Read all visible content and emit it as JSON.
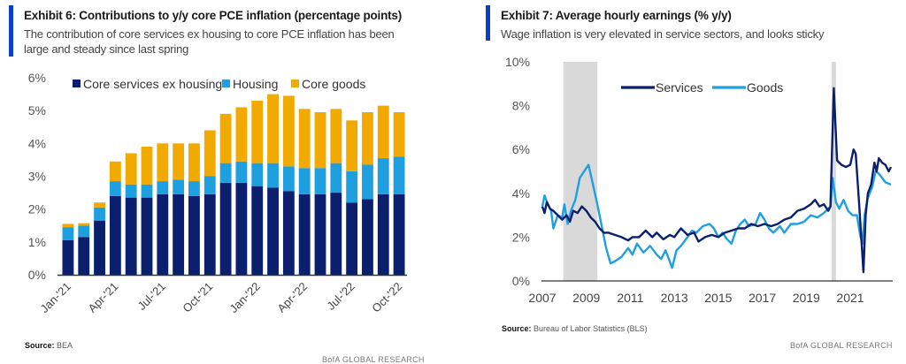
{
  "exhibit6": {
    "title": "Exhibit 6: Contributions to y/y core PCE inflation (percentage points)",
    "subtitle_line1": "The contribution of core services ex housing to core PCE inflation has been",
    "subtitle_line2": "large and steady since last spring",
    "source_label": "Source:",
    "source_value": "BEA",
    "brand": "BofA GLOBAL RESEARCH"
  },
  "exhibit7": {
    "title": "Exhibit 7: Average hourly earnings (% y/y)",
    "subtitle": "Wage inflation is very elevated in service sectors, and looks sticky",
    "source_label": "Source:",
    "source_value": "Bureau of Labor Statistics (BLS)",
    "brand": "BofA GLOBAL RESEARCH"
  },
  "colors": {
    "accent": "#0b3ec9",
    "navy": "#0a1f6e",
    "housing": "#1ea0e0",
    "goods": "#f2a900",
    "recession": "#d9d9d9",
    "axis": "#333333"
  },
  "chart_data": [
    {
      "type": "bar",
      "stacked": true,
      "title": "Exhibit 6: Contributions to y/y core PCE inflation (percentage points)",
      "xlabel": "",
      "ylabel": "",
      "ylim": [
        0,
        6
      ],
      "yticks": [
        "0%",
        "1%",
        "2%",
        "3%",
        "4%",
        "5%",
        "6%"
      ],
      "legend_position": "top",
      "categories": [
        "Jan-'21",
        "Feb-'21",
        "Mar-'21",
        "Apr-'21",
        "May-'21",
        "Jun-'21",
        "Jul-'21",
        "Aug-'21",
        "Sep-'21",
        "Oct-'21",
        "Nov-'21",
        "Dec-'21",
        "Jan-'22",
        "Feb-'22",
        "Mar-'22",
        "Apr-'22",
        "May-'22",
        "Jun-'22",
        "Jul-'22",
        "Aug-'22",
        "Sep-'22",
        "Oct-'22"
      ],
      "tick_labels": [
        {
          "index": 0,
          "label": "Jan-'21"
        },
        {
          "index": 3,
          "label": "Apr-'21"
        },
        {
          "index": 6,
          "label": "Jul-'21"
        },
        {
          "index": 9,
          "label": "Oct-'21"
        },
        {
          "index": 12,
          "label": "Jan-'22"
        },
        {
          "index": 15,
          "label": "Apr-'22"
        },
        {
          "index": 18,
          "label": "Jul-'22"
        },
        {
          "index": 21,
          "label": "Oct-'22"
        }
      ],
      "series": [
        {
          "name": "Core services ex housing",
          "color": "#0a1f6e",
          "values": [
            1.05,
            1.15,
            1.65,
            2.4,
            2.35,
            2.35,
            2.45,
            2.45,
            2.4,
            2.45,
            2.8,
            2.8,
            2.7,
            2.65,
            2.55,
            2.45,
            2.45,
            2.5,
            2.2,
            2.3,
            2.45,
            2.45
          ]
        },
        {
          "name": "Housing",
          "color": "#1ea0e0",
          "values": [
            0.4,
            0.35,
            0.4,
            0.45,
            0.4,
            0.4,
            0.4,
            0.45,
            0.45,
            0.55,
            0.6,
            0.65,
            0.7,
            0.75,
            0.75,
            0.8,
            0.8,
            0.9,
            0.95,
            1.05,
            1.1,
            1.15
          ]
        },
        {
          "name": "Core goods",
          "color": "#f2a900",
          "values": [
            0.1,
            0.07,
            0.15,
            0.6,
            0.95,
            1.15,
            1.15,
            1.1,
            1.15,
            1.4,
            1.5,
            1.65,
            1.9,
            2.1,
            2.15,
            1.8,
            1.7,
            1.65,
            1.55,
            1.6,
            1.6,
            1.35
          ]
        }
      ]
    },
    {
      "type": "line",
      "title": "Exhibit 7: Average hourly earnings (% y/y)",
      "xlabel": "",
      "ylabel": "",
      "xlim": [
        2007,
        2022.9
      ],
      "ylim": [
        0,
        10
      ],
      "xticks": [
        "2007",
        "2009",
        "2011",
        "2013",
        "2015",
        "2017",
        "2019",
        "2021"
      ],
      "yticks": [
        "0%",
        "2%",
        "4%",
        "6%",
        "8%",
        "10%"
      ],
      "legend_position": "top",
      "recessions": [
        [
          2007.95,
          2009.5
        ],
        [
          2020.15,
          2020.35
        ]
      ],
      "series": [
        {
          "name": "Services",
          "color": "#0a1f6e",
          "points": [
            [
              2007.0,
              3.4
            ],
            [
              2007.1,
              3.1
            ],
            [
              2007.2,
              3.6
            ],
            [
              2007.35,
              3.3
            ],
            [
              2007.5,
              3.2
            ],
            [
              2007.7,
              3.0
            ],
            [
              2007.9,
              2.8
            ],
            [
              2008.1,
              3.0
            ],
            [
              2008.25,
              2.7
            ],
            [
              2008.4,
              3.2
            ],
            [
              2008.6,
              3.1
            ],
            [
              2008.8,
              3.4
            ],
            [
              2009.0,
              3.2
            ],
            [
              2009.2,
              2.9
            ],
            [
              2009.4,
              2.7
            ],
            [
              2009.6,
              2.4
            ],
            [
              2009.8,
              2.2
            ],
            [
              2010.0,
              2.2
            ],
            [
              2010.3,
              2.1
            ],
            [
              2010.6,
              2.0
            ],
            [
              2010.9,
              1.85
            ],
            [
              2011.1,
              2.0
            ],
            [
              2011.4,
              2.0
            ],
            [
              2011.7,
              2.3
            ],
            [
              2012.0,
              2.0
            ],
            [
              2012.2,
              2.2
            ],
            [
              2012.5,
              1.9
            ],
            [
              2012.8,
              2.1
            ],
            [
              2013.0,
              2.0
            ],
            [
              2013.3,
              2.4
            ],
            [
              2013.6,
              2.1
            ],
            [
              2013.9,
              2.2
            ],
            [
              2014.1,
              1.8
            ],
            [
              2014.4,
              2.0
            ],
            [
              2014.7,
              2.1
            ],
            [
              2015.0,
              2.0
            ],
            [
              2015.3,
              2.2
            ],
            [
              2015.6,
              2.3
            ],
            [
              2015.9,
              2.4
            ],
            [
              2016.2,
              2.4
            ],
            [
              2016.5,
              2.6
            ],
            [
              2016.8,
              2.5
            ],
            [
              2017.1,
              2.6
            ],
            [
              2017.4,
              2.5
            ],
            [
              2017.7,
              2.6
            ],
            [
              2018.0,
              2.8
            ],
            [
              2018.3,
              2.9
            ],
            [
              2018.6,
              3.2
            ],
            [
              2018.9,
              3.3
            ],
            [
              2019.2,
              3.5
            ],
            [
              2019.4,
              3.7
            ],
            [
              2019.6,
              3.4
            ],
            [
              2019.8,
              3.5
            ],
            [
              2020.0,
              3.2
            ],
            [
              2020.1,
              3.4
            ],
            [
              2020.25,
              8.8
            ],
            [
              2020.4,
              5.5
            ],
            [
              2020.6,
              5.3
            ],
            [
              2020.8,
              5.2
            ],
            [
              2021.0,
              5.3
            ],
            [
              2021.15,
              6.0
            ],
            [
              2021.25,
              5.8
            ],
            [
              2021.4,
              3.6
            ],
            [
              2021.5,
              2.0
            ],
            [
              2021.6,
              0.4
            ],
            [
              2021.7,
              3.0
            ],
            [
              2021.8,
              4.0
            ],
            [
              2021.95,
              4.4
            ],
            [
              2022.1,
              5.4
            ],
            [
              2022.2,
              5.0
            ],
            [
              2022.3,
              5.6
            ],
            [
              2022.45,
              5.4
            ],
            [
              2022.6,
              5.3
            ],
            [
              2022.75,
              5.0
            ],
            [
              2022.85,
              5.2
            ]
          ]
        },
        {
          "name": "Goods",
          "color": "#1ea0e0",
          "points": [
            [
              2007.0,
              3.4
            ],
            [
              2007.1,
              3.9
            ],
            [
              2007.25,
              3.5
            ],
            [
              2007.4,
              3.2
            ],
            [
              2007.5,
              2.4
            ],
            [
              2007.7,
              3.0
            ],
            [
              2007.9,
              2.9
            ],
            [
              2008.0,
              3.5
            ],
            [
              2008.15,
              2.6
            ],
            [
              2008.3,
              3.2
            ],
            [
              2008.5,
              3.7
            ],
            [
              2008.7,
              4.7
            ],
            [
              2008.9,
              5.0
            ],
            [
              2009.1,
              5.3
            ],
            [
              2009.3,
              4.4
            ],
            [
              2009.5,
              3.5
            ],
            [
              2009.7,
              2.5
            ],
            [
              2009.9,
              1.5
            ],
            [
              2010.1,
              0.8
            ],
            [
              2010.3,
              0.9
            ],
            [
              2010.6,
              1.1
            ],
            [
              2010.9,
              1.5
            ],
            [
              2011.1,
              1.2
            ],
            [
              2011.3,
              1.7
            ],
            [
              2011.6,
              1.3
            ],
            [
              2011.9,
              1.6
            ],
            [
              2012.2,
              1.2
            ],
            [
              2012.4,
              1.0
            ],
            [
              2012.6,
              1.4
            ],
            [
              2012.9,
              0.6
            ],
            [
              2013.1,
              1.4
            ],
            [
              2013.3,
              1.6
            ],
            [
              2013.6,
              2.0
            ],
            [
              2013.8,
              2.3
            ],
            [
              2014.0,
              2.2
            ],
            [
              2014.3,
              2.5
            ],
            [
              2014.6,
              2.6
            ],
            [
              2014.8,
              2.4
            ],
            [
              2015.0,
              2.0
            ],
            [
              2015.2,
              2.2
            ],
            [
              2015.4,
              1.9
            ],
            [
              2015.6,
              1.7
            ],
            [
              2015.8,
              2.3
            ],
            [
              2016.0,
              2.6
            ],
            [
              2016.2,
              2.8
            ],
            [
              2016.4,
              2.5
            ],
            [
              2016.7,
              2.6
            ],
            [
              2016.9,
              3.1
            ],
            [
              2017.1,
              2.8
            ],
            [
              2017.3,
              2.4
            ],
            [
              2017.5,
              2.2
            ],
            [
              2017.8,
              2.5
            ],
            [
              2018.0,
              2.2
            ],
            [
              2018.3,
              2.6
            ],
            [
              2018.6,
              2.6
            ],
            [
              2018.9,
              2.7
            ],
            [
              2019.2,
              3.0
            ],
            [
              2019.5,
              2.9
            ],
            [
              2019.8,
              3.1
            ],
            [
              2020.1,
              3.4
            ],
            [
              2020.2,
              4.7
            ],
            [
              2020.35,
              3.6
            ],
            [
              2020.5,
              3.3
            ],
            [
              2020.7,
              3.7
            ],
            [
              2020.9,
              3.2
            ],
            [
              2021.1,
              3.0
            ],
            [
              2021.3,
              3.0
            ],
            [
              2021.45,
              2.1
            ],
            [
              2021.55,
              1.7
            ],
            [
              2021.65,
              3.0
            ],
            [
              2021.8,
              3.8
            ],
            [
              2022.0,
              4.3
            ],
            [
              2022.15,
              5.0
            ],
            [
              2022.3,
              4.9
            ],
            [
              2022.45,
              4.7
            ],
            [
              2022.6,
              4.5
            ],
            [
              2022.85,
              4.4
            ]
          ]
        }
      ]
    }
  ]
}
